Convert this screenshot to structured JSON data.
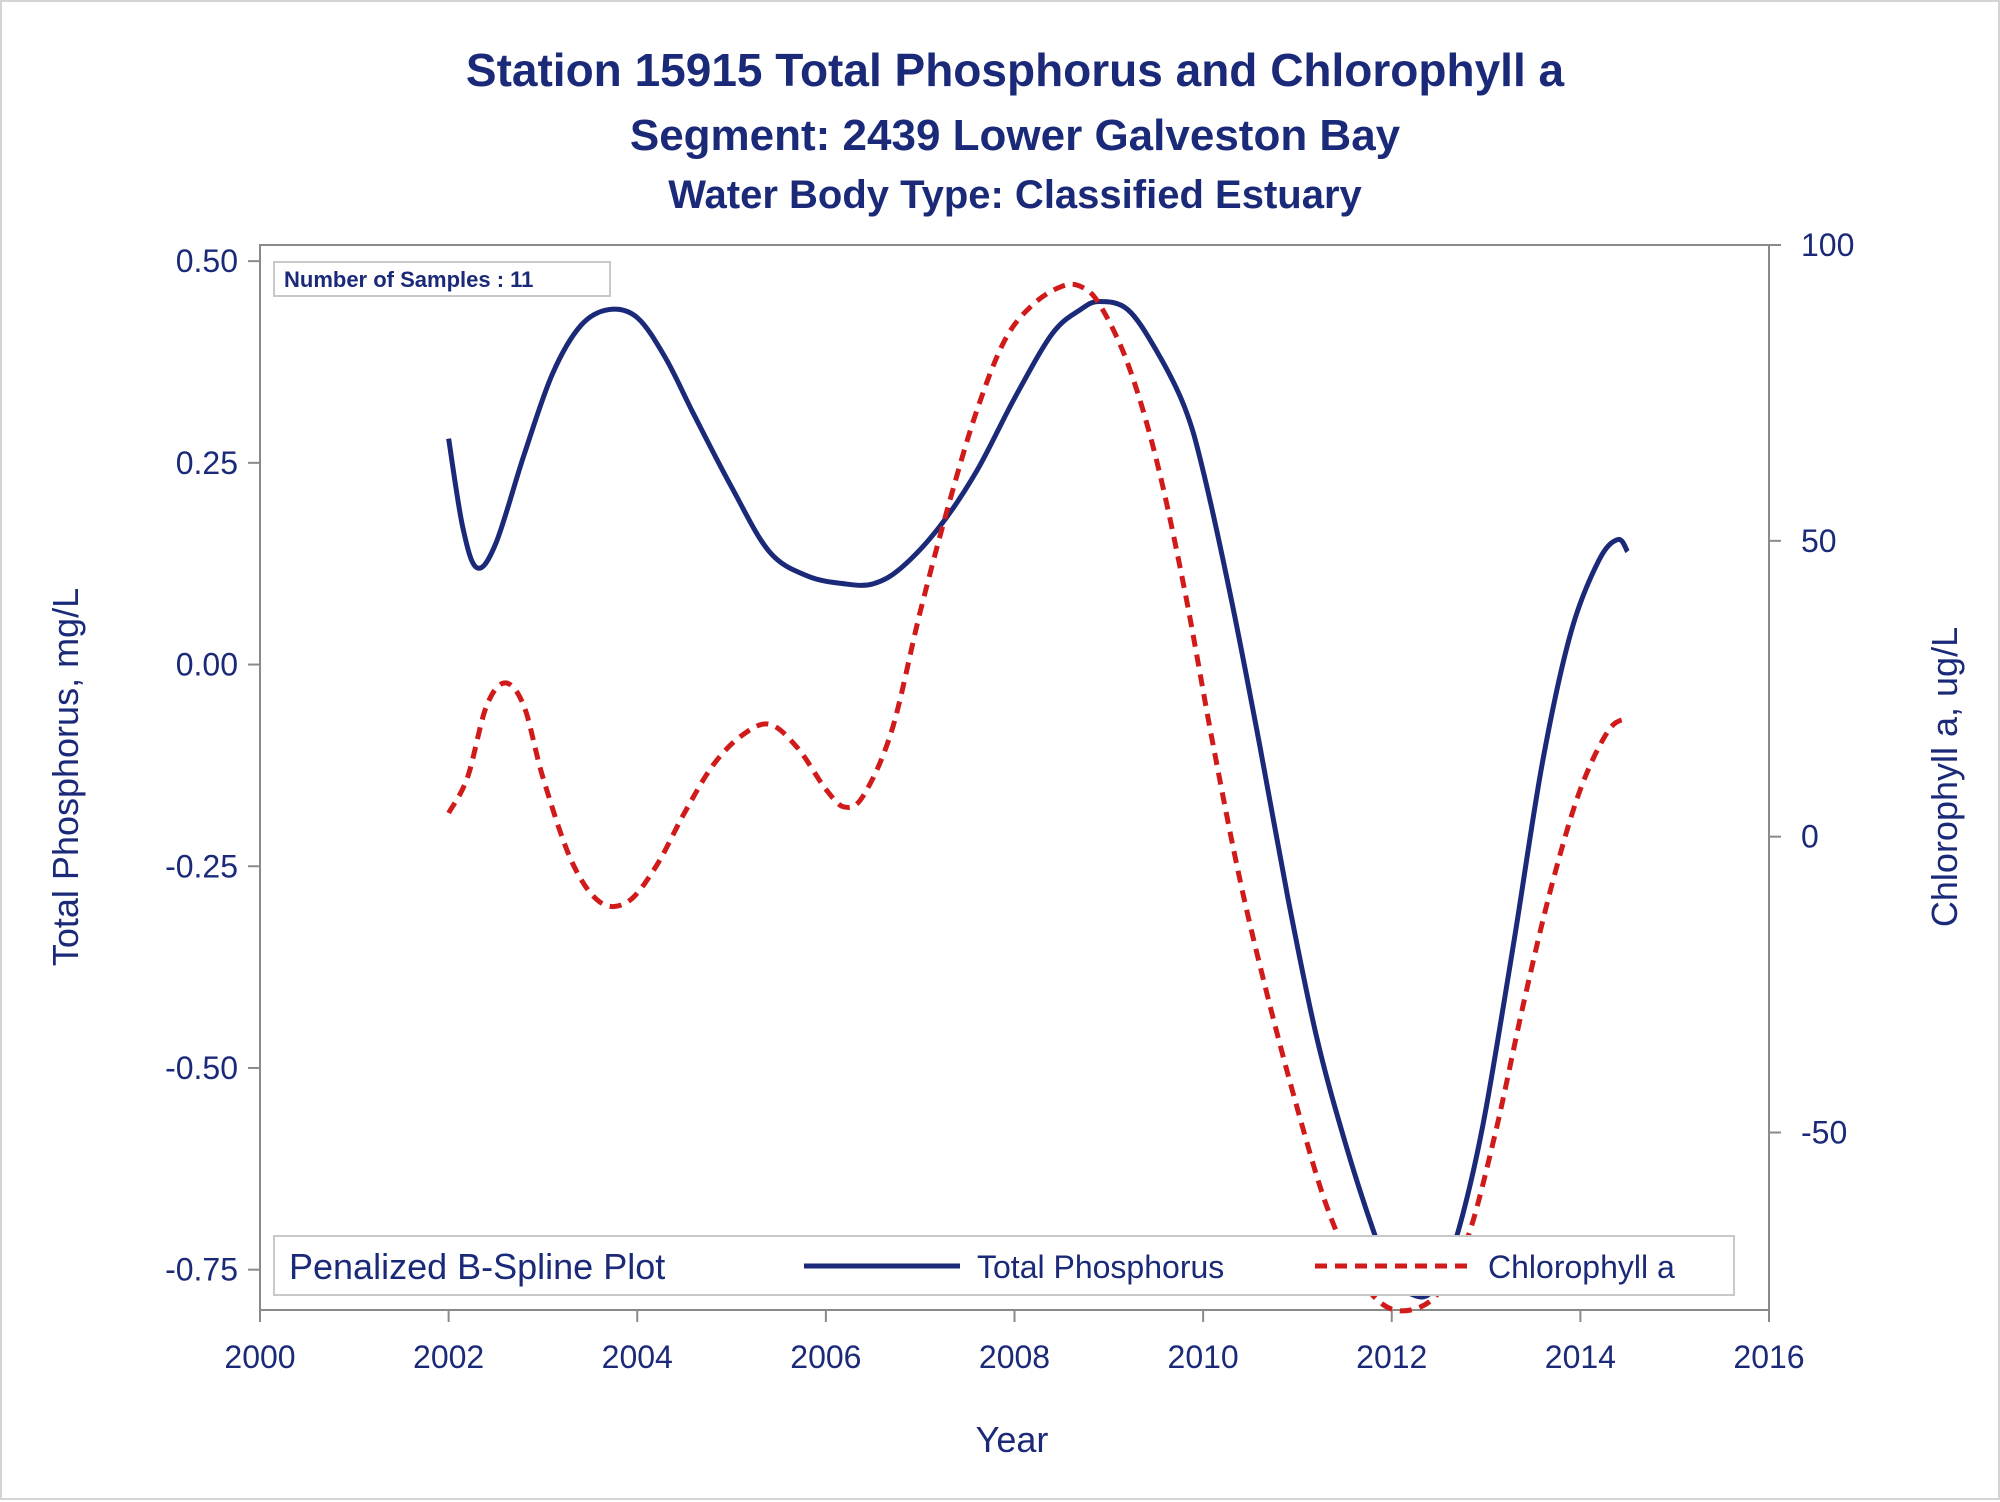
{
  "chart_data": {
    "type": "line",
    "title": "Station 15915  Total Phosphorus and Chlorophyll a",
    "subtitle": "Segment: 2439  Lower Galveston Bay",
    "subtitle2": "Water Body Type: Classified Estuary",
    "xlabel": "Year",
    "ylabel_left": "Total Phosphorus, mg/L",
    "ylabel_right": "Chlorophyll a, ug/L",
    "xlim": [
      2000,
      2016
    ],
    "ylim_left": [
      -0.8,
      0.52
    ],
    "ylim_right": [
      -80,
      100
    ],
    "x_ticks": [
      "2000",
      "2002",
      "2004",
      "2006",
      "2008",
      "2010",
      "2012",
      "2014",
      "2016"
    ],
    "y_left_ticks": [
      "-0.75",
      "-0.50",
      "-0.25",
      "0.00",
      "0.25",
      "0.50"
    ],
    "y_right_ticks": [
      "-50",
      "0",
      "50",
      "100"
    ],
    "annotation": "Number of Samples : 11",
    "legend": {
      "title": "Penalized B-Spline Plot",
      "placement": "bottom"
    },
    "grid": false,
    "series": [
      {
        "name": "Total Phosphorus",
        "axis": "left",
        "color": "#1b2a78",
        "style": "solid",
        "x": [
          2002.0,
          2002.15,
          2002.3,
          2002.5,
          2002.8,
          2003.1,
          2003.4,
          2003.7,
          2004.0,
          2004.3,
          2004.6,
          2005.0,
          2005.4,
          2005.8,
          2006.2,
          2006.5,
          2006.8,
          2007.2,
          2007.6,
          2008.0,
          2008.4,
          2008.7,
          2008.9,
          2009.2,
          2009.5,
          2009.8,
          2010.0,
          2010.3,
          2010.6,
          2010.9,
          2011.2,
          2011.5,
          2011.8,
          2012.0,
          2012.2,
          2012.4,
          2012.6,
          2012.8,
          2013.0,
          2013.3,
          2013.6,
          2013.9,
          2014.2,
          2014.4,
          2014.5
        ],
        "values": [
          0.28,
          0.17,
          0.12,
          0.15,
          0.26,
          0.36,
          0.42,
          0.44,
          0.43,
          0.38,
          0.31,
          0.22,
          0.14,
          0.11,
          0.1,
          0.1,
          0.12,
          0.17,
          0.24,
          0.33,
          0.41,
          0.44,
          0.45,
          0.44,
          0.39,
          0.32,
          0.24,
          0.08,
          -0.1,
          -0.29,
          -0.46,
          -0.59,
          -0.7,
          -0.76,
          -0.78,
          -0.78,
          -0.74,
          -0.66,
          -0.55,
          -0.34,
          -0.12,
          0.04,
          0.13,
          0.155,
          0.14
        ]
      },
      {
        "name": "Chlorophyll a",
        "axis": "right",
        "color": "#d11a1a",
        "style": "dashed",
        "x": [
          2002.0,
          2002.2,
          2002.4,
          2002.6,
          2002.8,
          2003.0,
          2003.3,
          2003.6,
          2003.9,
          2004.2,
          2004.5,
          2004.8,
          2005.1,
          2005.4,
          2005.7,
          2006.0,
          2006.2,
          2006.4,
          2006.7,
          2007.0,
          2007.3,
          2007.6,
          2007.9,
          2008.2,
          2008.5,
          2008.7,
          2008.9,
          2009.2,
          2009.5,
          2009.8,
          2010.1,
          2010.4,
          2010.7,
          2011.0,
          2011.3,
          2011.6,
          2011.9,
          2012.2,
          2012.5,
          2012.8,
          2013.1,
          2013.4,
          2013.7,
          2014.0,
          2014.3,
          2014.5
        ],
        "values": [
          4,
          10,
          22,
          26,
          22,
          10,
          -4,
          -11,
          -11,
          -5,
          4,
          12,
          17,
          19,
          15,
          8,
          5,
          7,
          18,
          38,
          56,
          72,
          84,
          90,
          93,
          93,
          90,
          80,
          64,
          42,
          16,
          -8,
          -28,
          -46,
          -62,
          -73,
          -79,
          -80,
          -77,
          -68,
          -50,
          -28,
          -8,
          8,
          18,
          20
        ]
      }
    ]
  }
}
